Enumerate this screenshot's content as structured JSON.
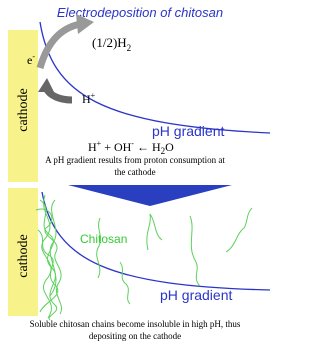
{
  "title": "Electrodeposition of chitosan",
  "panel1": {
    "cathode": "cathode",
    "electron": [
      "e",
      "-"
    ],
    "hydrogen": [
      "(1/2)H",
      "2"
    ],
    "proton": [
      "H",
      "+"
    ],
    "reaction": [
      "H",
      "+",
      " + OH",
      "-",
      " ← H",
      "2",
      "O"
    ],
    "gradient": "pH gradient",
    "caption": [
      "A pH gradient results from proton consumption at",
      "the cathode"
    ]
  },
  "panel2": {
    "cathode": "cathode",
    "chitosan": "Chitosan",
    "gradient": "pH gradient",
    "caption": [
      "Soluble chitosan chains become insoluble in high pH, thus",
      "depositing on the cathode"
    ]
  }
}
